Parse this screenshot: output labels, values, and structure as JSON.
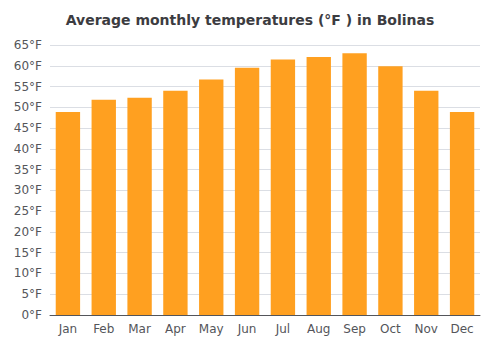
{
  "chart_data": {
    "type": "bar",
    "title": "Average monthly temperatures (°F ) in Bolinas",
    "categories": [
      "Jan",
      "Feb",
      "Mar",
      "Apr",
      "May",
      "Jun",
      "Jul",
      "Aug",
      "Sep",
      "Oct",
      "Nov",
      "Dec"
    ],
    "values": [
      48.9,
      51.8,
      52.3,
      54.0,
      56.7,
      59.5,
      61.5,
      62.1,
      63.0,
      59.9,
      54.0,
      48.9
    ],
    "color": "#FFA020",
    "ylim": [
      0,
      65
    ],
    "yticks": [
      {
        "value": 0,
        "label": "0°F"
      },
      {
        "value": 5,
        "label": "5°F"
      },
      {
        "value": 10,
        "label": "10°F"
      },
      {
        "value": 15,
        "label": "15°F"
      },
      {
        "value": 20,
        "label": "20°F"
      },
      {
        "value": 25,
        "label": "25°F"
      },
      {
        "value": 30,
        "label": "30°F"
      },
      {
        "value": 35,
        "label": "35°F"
      },
      {
        "value": 40,
        "label": "40°F"
      },
      {
        "value": 45,
        "label": "45°F"
      },
      {
        "value": 50,
        "label": "50°F"
      },
      {
        "value": 55,
        "label": "55°F"
      },
      {
        "value": 60,
        "label": "60°F"
      },
      {
        "value": 65,
        "label": "65°F"
      }
    ],
    "grid": true
  }
}
